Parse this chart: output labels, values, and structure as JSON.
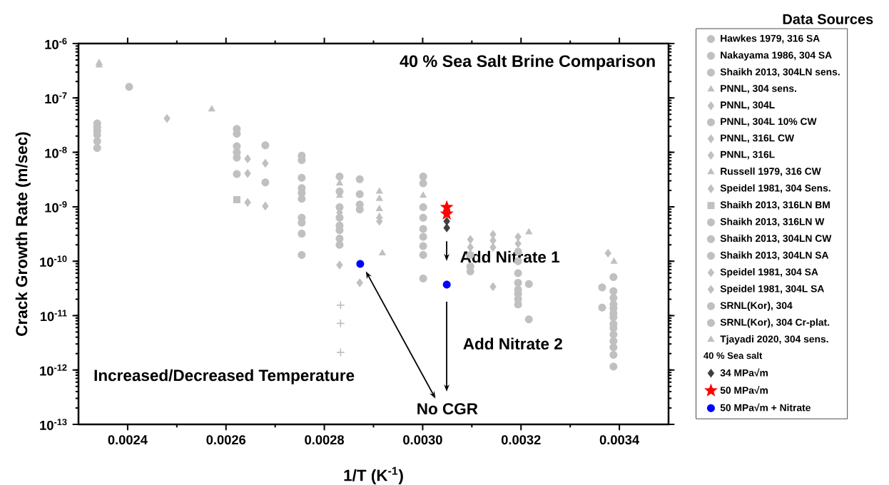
{
  "chart_data": {
    "type": "scatter",
    "xlabel": "1/T (K$^{-1}$)",
    "ylabel": "Crack Growth Rate (m/sec)",
    "legend_title": "Data Sources",
    "xlim": [
      0.0023,
      0.0035
    ],
    "ylim": [
      1e-13,
      1e-06
    ],
    "log": "y",
    "legend": "right",
    "xticks": [
      {
        "value": 0.0024,
        "label": "0.0024"
      },
      {
        "value": 0.0025,
        "label": null
      },
      {
        "value": 0.0026,
        "label": "0.0026"
      },
      {
        "value": 0.0027,
        "label": null
      },
      {
        "value": 0.0028,
        "label": "0.0028"
      },
      {
        "value": 0.0029,
        "label": null
      },
      {
        "value": 0.003,
        "label": "0.0030"
      },
      {
        "value": 0.0031,
        "label": null
      },
      {
        "value": 0.0032,
        "label": "0.0032"
      },
      {
        "value": 0.0033,
        "label": null
      },
      {
        "value": 0.0034,
        "label": "0.0034"
      }
    ],
    "yticks": [
      {
        "value": 1e-13,
        "label": "10$^{-13}$"
      },
      {
        "value": 1e-12,
        "label": "10$^{-12}$"
      },
      {
        "value": 1e-11,
        "label": "10$^{-11}$"
      },
      {
        "value": 1e-10,
        "label": "10$^{-10}$"
      },
      {
        "value": 1e-09,
        "label": "10$^{-9}$"
      },
      {
        "value": 1e-08,
        "label": "10$^{-8}$"
      },
      {
        "value": 1e-07,
        "label": "10$^{-7}$"
      },
      {
        "value": 1e-06,
        "label": "10$^{-6}$"
      }
    ],
    "annotations": [
      "40 % Sea Salt Brine Comparison",
      "Add Nitrate 1",
      "Add Nitrate 2",
      "Increased/Decreased Temperature",
      "No CGR",
      "40 % Sea salt"
    ],
    "series": [
      {
        "name": "Hawkes 1979, 316 SA",
        "color": "#c0c0c0",
        "marker": "circle",
        "x": [
          0.002338,
          0.002338,
          0.002338,
          0.002338,
          0.002338,
          0.002338
        ],
        "values": [
          3.4e-08,
          2.9e-08,
          2.5e-08,
          2.1e-08,
          1.6e-08,
          1.2e-08
        ]
      },
      {
        "name": "Nakayama 1986, 304 SA",
        "color": "#c0c0c0",
        "marker": "circle",
        "x": [
          0.002403,
          0.00268,
          0.00268
        ],
        "values": [
          1.6e-07,
          1.35e-08,
          2.8e-09
        ]
      },
      {
        "name": "Shaikh 2013, 304LN sens.",
        "color": "#c0c0c0",
        "marker": "circle",
        "x": [
          0.002622,
          0.002622,
          0.002622,
          0.002622,
          0.002622,
          0.002622
        ],
        "values": [
          2.7e-08,
          2.2e-08,
          1.3e-08,
          1e-08,
          8e-09,
          4e-09
        ]
      },
      {
        "name": "PNNL, 304 sens.",
        "color": "#c0c0c0",
        "marker": "triangle",
        "x": [
          0.002831,
          0.002831,
          0.002912,
          0.002912,
          0.002912,
          0.002912
        ],
        "values": [
          2.7e-09,
          1.6e-09,
          1.9e-09,
          1.4e-09,
          9.1e-10,
          6.6e-10
        ]
      },
      {
        "name": "PNNL, 304L",
        "color": "#c0c0c0",
        "marker": "diamond",
        "x": [
          0.002831,
          0.002831,
          0.002912
        ],
        "values": [
          7.8e-10,
          8.5e-11,
          5.4e-10
        ]
      },
      {
        "name": "PNNL, 304L 10% CW",
        "color": "#c0c0c0",
        "marker": "circle",
        "x": [
          0.002831,
          0.002831,
          0.002831,
          0.002831,
          0.002831,
          0.002831,
          0.002831,
          0.002831,
          0.002872,
          0.002872,
          0.002872,
          0.002872,
          0.003001,
          0.003001,
          0.003001,
          0.003001,
          0.003001,
          0.003001,
          0.003001,
          0.003001,
          0.003001,
          0.003097,
          0.003097,
          0.003097,
          0.003194,
          0.003194,
          0.003194,
          0.003194,
          0.003194,
          0.003194,
          0.003194,
          0.003194
        ],
        "values": [
          3.6e-09,
          1.9e-09,
          9.8e-10,
          6.3e-10,
          4.5e-10,
          3.7e-10,
          2.6e-10,
          2e-10,
          3.2e-09,
          1.7e-09,
          1.1e-09,
          8.9e-10,
          3.6e-09,
          2.7e-09,
          9.8e-10,
          6.3e-10,
          3.9e-10,
          2.8e-10,
          1.9e-10,
          1.3e-10,
          4.8e-11,
          1.3e-10,
          8e-11,
          6.5e-11,
          1.5e-10,
          1e-10,
          6e-11,
          4e-11,
          3e-11,
          2.5e-11,
          2e-11,
          1.6e-11
        ]
      },
      {
        "name": "PNNL, 316L CW",
        "color": "#c0c0c0",
        "marker": "diamond",
        "x": [
          0.003097,
          0.003097,
          0.003143,
          0.003143,
          0.003143
        ],
        "values": [
          2.5e-10,
          1.8e-10,
          3.1e-10,
          2.4e-10,
          1.8e-10
        ]
      },
      {
        "name": "PNNL, 316L",
        "color": "#c0c0c0",
        "marker": "diamond",
        "x": [
          0.003143,
          0.003194,
          0.003194,
          0.002872
        ],
        "values": [
          3.4e-11,
          2.8e-10,
          2.1e-10,
          4e-11
        ]
      },
      {
        "name": "Russell 1979, 316 CW",
        "color": "#c0c0c0",
        "marker": "triangle",
        "x": [
          0.002342,
          0.002342,
          0.002571
        ],
        "values": [
          4.4e-07,
          4e-07,
          6.2e-08
        ]
      },
      {
        "name": "Speidel 1981, 304 Sens.",
        "color": "#c0c0c0",
        "marker": "diamond",
        "x": [
          0.00248,
          0.00268,
          0.00268
        ],
        "values": [
          4.2e-08,
          6.3e-09,
          1.03e-09
        ]
      },
      {
        "name": "Shaikh 2013, 316LN BM",
        "color": "#c0c0c0",
        "marker": "square",
        "x": [
          0.002622
        ],
        "values": [
          1.35e-09
        ]
      },
      {
        "name": "Shaikh 2013, 316LN W",
        "color": "#c0c0c0",
        "marker": "circle",
        "x": [
          0.002754,
          0.002754,
          0.002754,
          0.002754
        ],
        "values": [
          8.7e-09,
          7.2e-09,
          3.4e-09,
          2.2e-09
        ]
      },
      {
        "name": "Shaikh 2013, 304LN CW",
        "color": "#c0c0c0",
        "marker": "circle",
        "x": [
          0.002754,
          0.002754,
          0.002754
        ],
        "values": [
          1.8e-09,
          1.4e-09,
          6.3e-10
        ]
      },
      {
        "name": "Shaikh 2013, 304LN SA",
        "color": "#c0c0c0",
        "marker": "circle",
        "x": [
          0.002754,
          0.002754,
          0.002754
        ],
        "values": [
          5.1e-10,
          3.2e-10,
          1.3e-10
        ]
      },
      {
        "name": "Speidel 1981, 304 SA",
        "color": "#c0c0c0",
        "marker": "diamond",
        "x": [
          0.002644,
          0.002644,
          0.002644
        ],
        "values": [
          7.6e-09,
          4.1e-09,
          1.2e-09
        ]
      },
      {
        "name": "Speidel 1981, 304L SA",
        "color": "#c0c0c0",
        "marker": "diamond",
        "x": [
          0.003377
        ],
        "values": [
          1.4e-10
        ]
      },
      {
        "name": "SRNL(Kor), 304",
        "color": "#c0c0c0",
        "marker": "circle",
        "x": [
          0.003388,
          0.003365,
          0.003388,
          0.003388,
          0.003388,
          0.003365,
          0.003388,
          0.003388,
          0.003388,
          0.003388,
          0.003388,
          0.003388,
          0.003388,
          0.003388,
          0.003388,
          0.003388
        ],
        "values": [
          5.1e-11,
          3.3e-11,
          2.8e-11,
          2.1e-11,
          1.6e-11,
          1.4e-11,
          1.35e-11,
          1.1e-11,
          9.3e-12,
          7e-12,
          5.9e-12,
          4.5e-12,
          3.4e-12,
          2.6e-12,
          1.9e-12,
          1.15e-12
        ]
      },
      {
        "name": "SRNL(Kor), 304 Cr-plat.",
        "color": "#c0c0c0",
        "marker": "circle",
        "x": [
          0.003216,
          0.003216
        ],
        "values": [
          3.8e-11,
          8.5e-12
        ]
      },
      {
        "name": "Tjayadi 2020, 304 sens.",
        "color": "#c0c0c0",
        "marker": "triangle",
        "x": [
          0.002918,
          0.003216,
          0.003389,
          0.003001
        ],
        "values": [
          1.4e-10,
          3.4e-10,
          9.8e-11,
          1.6e-09
        ]
      },
      {
        "color": "#c0c0c0",
        "marker": "cross",
        "x": [
          0.002833,
          0.002833,
          0.002833
        ],
        "values": [
          1.55e-11,
          7.2e-12,
          2.1e-12
        ]
      },
      {
        "name": "34 MPa√m",
        "color": "#404040",
        "marker": "diamond",
        "x": [
          0.003049,
          0.003049
        ],
        "values": [
          5.4e-10,
          4.1e-10
        ]
      },
      {
        "name": "50 MPa√m",
        "color": "#ff0000",
        "marker": "star",
        "x": [
          0.003049,
          0.003049
        ],
        "values": [
          9.8e-10,
          7.4e-10
        ]
      },
      {
        "name": "50 MPa√m + Nitrate",
        "color": "#0000ff",
        "marker": "circle",
        "x": [
          0.002873,
          0.003049
        ],
        "values": [
          8.9e-11,
          3.7e-11
        ]
      }
    ]
  }
}
